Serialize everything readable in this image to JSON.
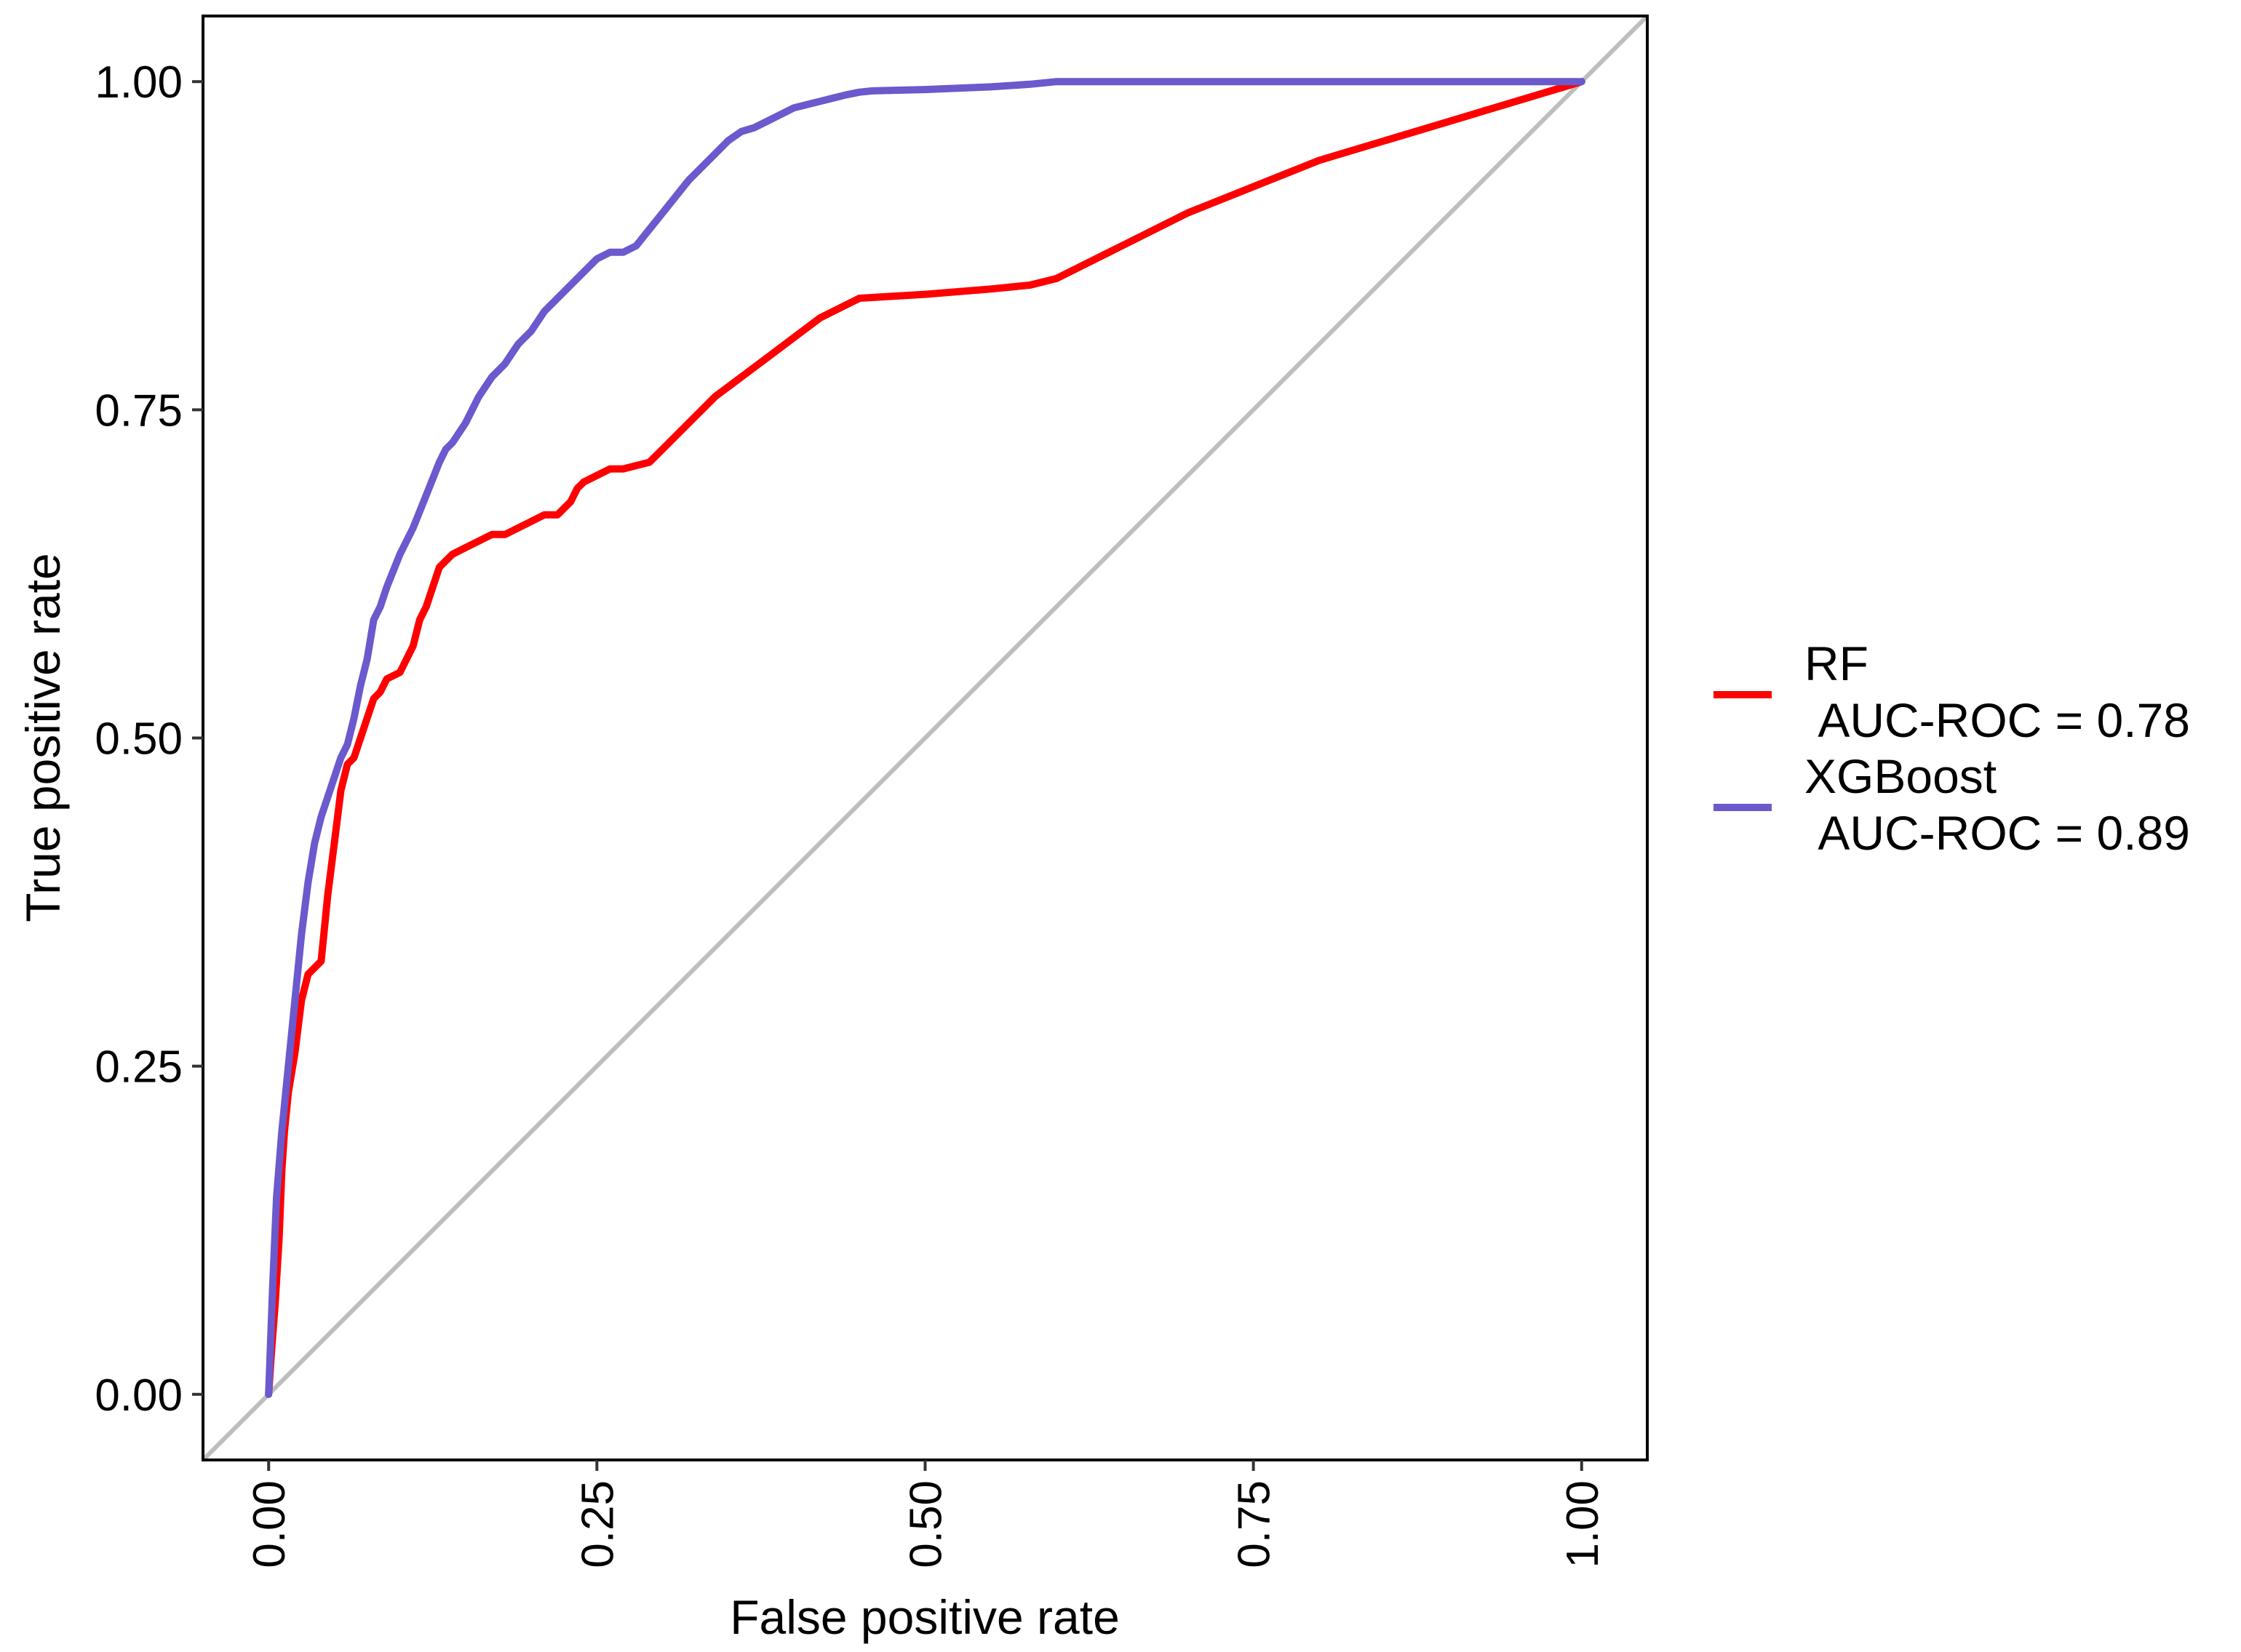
{
  "chart_data": {
    "type": "line",
    "title": "",
    "xlabel": "False positive rate",
    "ylabel": "True positive rate",
    "xlim": [
      -0.05,
      1.05
    ],
    "ylim": [
      -0.05,
      1.05
    ],
    "xticks": [
      0,
      0.25,
      0.5,
      0.75,
      1
    ],
    "yticks": [
      0,
      0.25,
      0.5,
      0.75,
      1
    ],
    "xtick_labels": [
      "0.00",
      "0.25",
      "0.50",
      "0.75",
      "1.00"
    ],
    "ytick_labels": [
      "0.00",
      "0.25",
      "0.50",
      "0.75",
      "1.00"
    ],
    "x_tick_label_rotation": "vertical",
    "grid": false,
    "legend_position": "right",
    "reference_line": {
      "x": [
        -0.05,
        1.05
      ],
      "y": [
        -0.05,
        1.05
      ],
      "color": "#bebebe"
    },
    "series": [
      {
        "name": "RF\n AUC-ROC = 0.78",
        "color": "#ff0000",
        "x": [
          0,
          0.002,
          0.005,
          0.008,
          0.01,
          0.012,
          0.015,
          0.02,
          0.025,
          0.03,
          0.04,
          0.045,
          0.05,
          0.055,
          0.06,
          0.065,
          0.07,
          0.08,
          0.085,
          0.09,
          0.1,
          0.11,
          0.115,
          0.12,
          0.13,
          0.135,
          0.14,
          0.15,
          0.16,
          0.17,
          0.18,
          0.19,
          0.2,
          0.21,
          0.22,
          0.23,
          0.235,
          0.24,
          0.25,
          0.26,
          0.27,
          0.29,
          0.3,
          0.32,
          0.34,
          0.36,
          0.38,
          0.4,
          0.42,
          0.44,
          0.45,
          0.5,
          0.55,
          0.58,
          0.6,
          0.65,
          0.7,
          0.8,
          0.9,
          1.0
        ],
        "y": [
          0,
          0.03,
          0.07,
          0.12,
          0.17,
          0.2,
          0.23,
          0.26,
          0.3,
          0.32,
          0.33,
          0.38,
          0.42,
          0.46,
          0.48,
          0.485,
          0.5,
          0.53,
          0.535,
          0.545,
          0.55,
          0.57,
          0.59,
          0.6,
          0.63,
          0.635,
          0.64,
          0.645,
          0.65,
          0.655,
          0.655,
          0.66,
          0.665,
          0.67,
          0.67,
          0.68,
          0.69,
          0.695,
          0.7,
          0.705,
          0.705,
          0.71,
          0.72,
          0.74,
          0.76,
          0.775,
          0.79,
          0.805,
          0.82,
          0.83,
          0.835,
          0.838,
          0.842,
          0.845,
          0.85,
          0.875,
          0.9,
          0.94,
          0.97,
          1.0
        ]
      },
      {
        "name": "XGBoost\n AUC-ROC = 0.89",
        "color": "#6a5acd",
        "x": [
          0,
          0.003,
          0.006,
          0.01,
          0.015,
          0.02,
          0.025,
          0.03,
          0.035,
          0.04,
          0.05,
          0.055,
          0.06,
          0.065,
          0.07,
          0.075,
          0.08,
          0.085,
          0.09,
          0.1,
          0.11,
          0.12,
          0.13,
          0.135,
          0.14,
          0.15,
          0.16,
          0.17,
          0.18,
          0.19,
          0.2,
          0.21,
          0.22,
          0.23,
          0.24,
          0.25,
          0.26,
          0.27,
          0.28,
          0.3,
          0.32,
          0.34,
          0.35,
          0.36,
          0.37,
          0.38,
          0.4,
          0.42,
          0.44,
          0.45,
          0.46,
          0.5,
          0.55,
          0.58,
          0.6,
          0.7,
          0.8,
          1.0
        ],
        "y": [
          0,
          0.08,
          0.15,
          0.2,
          0.25,
          0.3,
          0.35,
          0.39,
          0.42,
          0.44,
          0.47,
          0.485,
          0.495,
          0.515,
          0.54,
          0.56,
          0.59,
          0.6,
          0.615,
          0.64,
          0.66,
          0.685,
          0.71,
          0.72,
          0.725,
          0.74,
          0.76,
          0.775,
          0.785,
          0.8,
          0.81,
          0.825,
          0.835,
          0.845,
          0.855,
          0.865,
          0.87,
          0.87,
          0.875,
          0.9,
          0.925,
          0.945,
          0.955,
          0.962,
          0.965,
          0.97,
          0.98,
          0.985,
          0.99,
          0.992,
          0.993,
          0.994,
          0.996,
          0.998,
          1.0,
          1.0,
          1.0,
          1.0
        ]
      }
    ]
  }
}
